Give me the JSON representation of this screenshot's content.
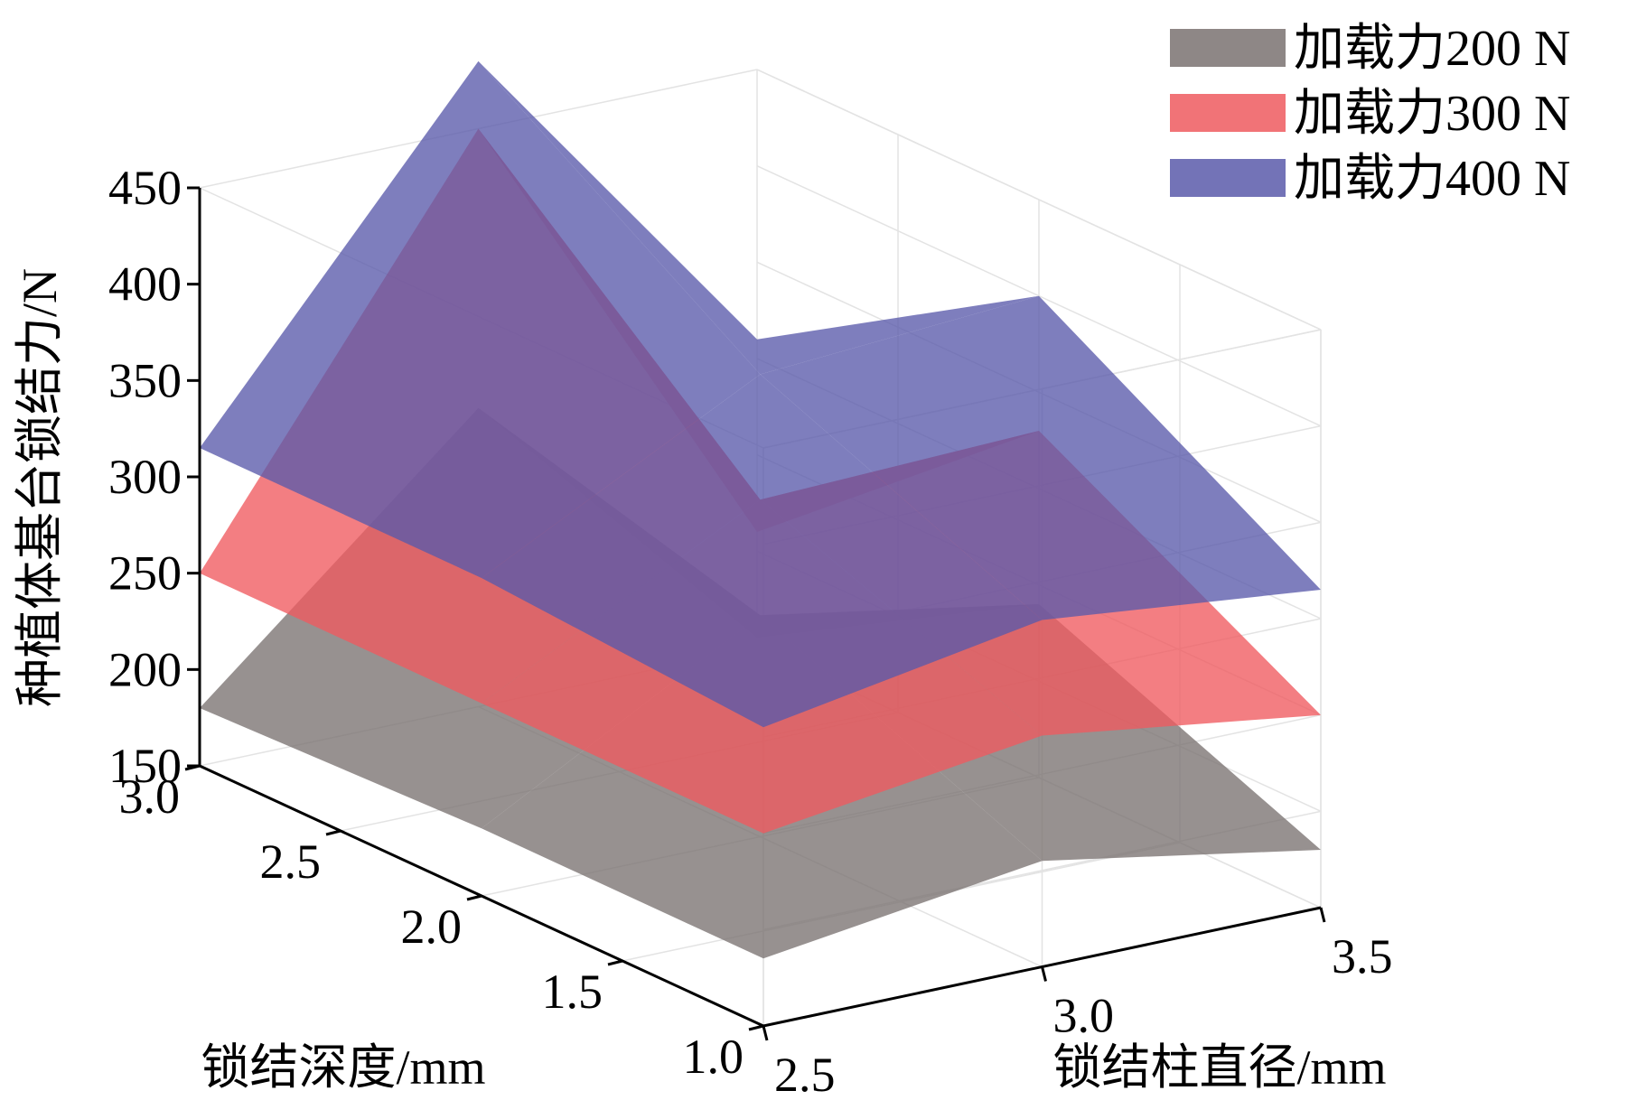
{
  "chart_data": {
    "type": "surface3d",
    "title": "",
    "xlabel": "锁结柱直径/mm",
    "ylabel": "锁结深度/mm",
    "zlabel": "种植体基台锁结力/N",
    "x_ticks": [
      "2.5",
      "3.0",
      "3.5"
    ],
    "y_ticks": [
      "1.0",
      "1.5",
      "2.0",
      "2.5",
      "3.0"
    ],
    "z_ticks": [
      "150",
      "200",
      "250",
      "300",
      "350",
      "400",
      "450"
    ],
    "xlim": [
      2.5,
      3.5
    ],
    "ylim": [
      1.0,
      3.0
    ],
    "zlim": [
      150,
      450
    ],
    "grid": true,
    "legend_position": "top-right",
    "x": [
      2.5,
      3.0,
      3.5
    ],
    "y": [
      1.0,
      2.0,
      3.0
    ],
    "series": [
      {
        "name": "加载力200 N",
        "color": "#7a7271",
        "z": [
          [
            185,
            205,
            180
          ],
          [
            185,
            265,
            240
          ],
          [
            180,
            305,
            155
          ]
        ]
      },
      {
        "name": "加载力300 N",
        "color": "#ef5a5f",
        "z": [
          [
            250,
            270,
            250
          ],
          [
            250,
            325,
            330
          ],
          [
            250,
            450,
            210
          ]
        ]
      },
      {
        "name": "加载力400 N",
        "color": "#5a5aaa",
        "z": [
          [
            305,
            330,
            315
          ],
          [
            315,
            390,
            400
          ],
          [
            315,
            485,
            310
          ]
        ]
      }
    ]
  }
}
